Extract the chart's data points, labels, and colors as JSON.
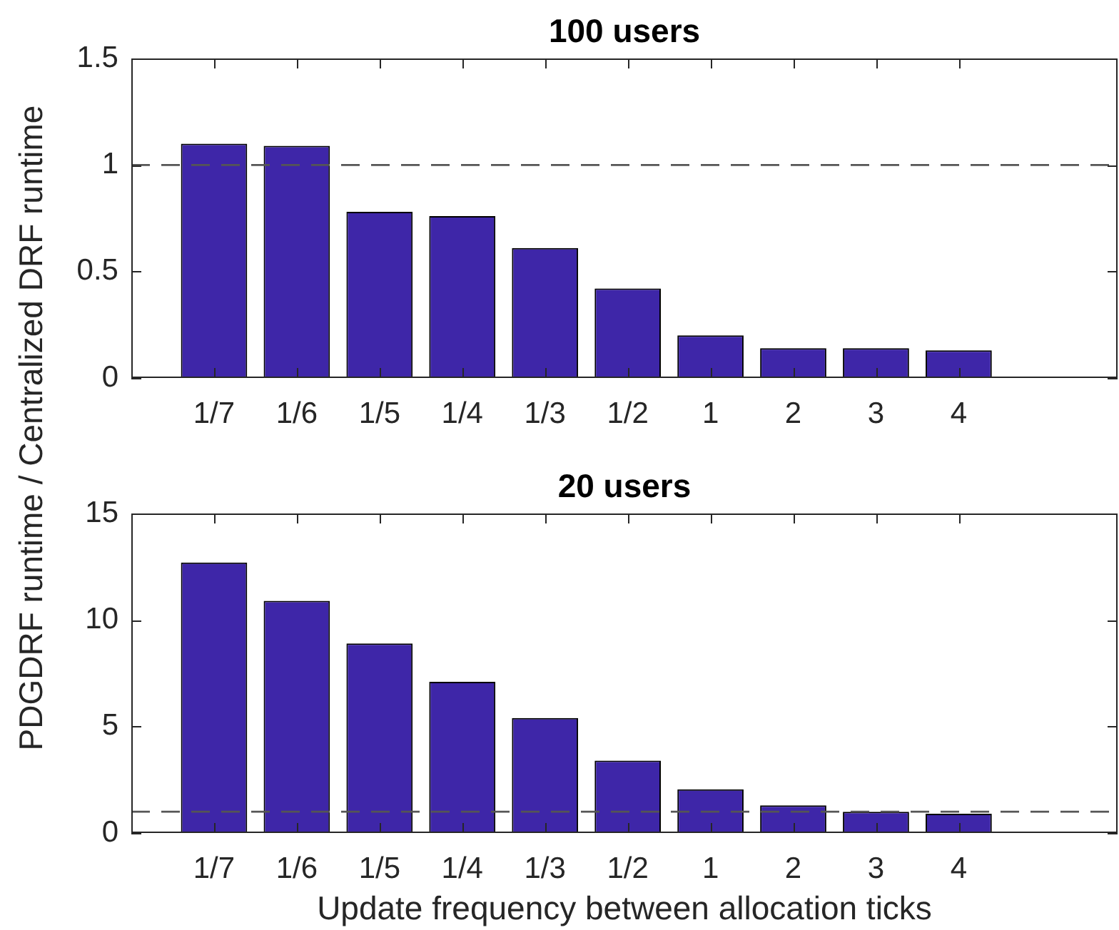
{
  "chart_data": [
    {
      "type": "bar",
      "title": "100 users",
      "ylabel": "PDGDRF runtime / Centralized DRF runtime",
      "categories": [
        "1/7",
        "1/6",
        "1/5",
        "1/4",
        "1/3",
        "1/2",
        "1",
        "2",
        "3",
        "4"
      ],
      "values": [
        1.1,
        1.09,
        0.78,
        0.76,
        0.61,
        0.42,
        0.2,
        0.14,
        0.14,
        0.13
      ],
      "color": "#3e26a8",
      "ylim": [
        0,
        1.5
      ],
      "yticks": [
        0,
        0.5,
        1,
        1.5
      ],
      "ref_lines": [
        {
          "axis": "y",
          "value": 1,
          "color": "#555555",
          "line_style": "dashed"
        }
      ]
    },
    {
      "type": "bar",
      "title": "20 users",
      "xlabel": "Update frequency between allocation ticks",
      "categories": [
        "1/7",
        "1/6",
        "1/5",
        "1/4",
        "1/3",
        "1/2",
        "1",
        "2",
        "3",
        "4"
      ],
      "values": [
        12.7,
        10.9,
        8.9,
        7.1,
        5.4,
        3.4,
        2.05,
        1.3,
        1.0,
        0.9
      ],
      "color": "#3e26a8",
      "ylim": [
        0,
        15
      ],
      "yticks": [
        0,
        5,
        10,
        15
      ],
      "ref_lines": [
        {
          "axis": "y",
          "value": 1,
          "color": "#555555",
          "line_style": "dashed"
        }
      ]
    }
  ]
}
